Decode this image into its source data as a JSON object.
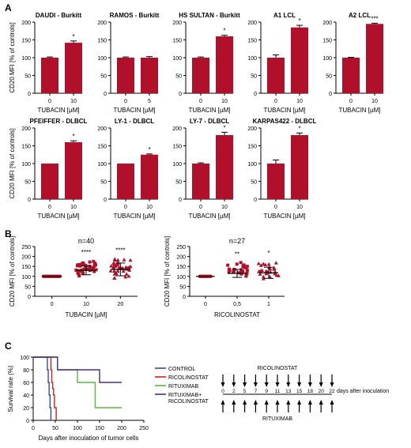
{
  "panel_labels": {
    "A": "A",
    "B": "B",
    "C": "C"
  },
  "chart_data": [
    {
      "type": "bar",
      "title": "DAUDI - Burkitt",
      "categories": [
        "0",
        "10"
      ],
      "values": [
        100,
        142
      ],
      "errors": [
        2,
        5
      ],
      "annotations": [
        "",
        "*"
      ],
      "xlabel": "TUBACIN [µM]",
      "ylabel": "CD20 MFI [% of controls]",
      "ylim": [
        0,
        200
      ],
      "yticks": [
        0,
        50,
        100,
        150,
        200
      ]
    },
    {
      "type": "bar",
      "title": "RAMOS - Burkitt",
      "categories": [
        "0",
        "5"
      ],
      "values": [
        100,
        100
      ],
      "errors": [
        2,
        3
      ],
      "annotations": [
        "",
        ""
      ],
      "xlabel": "TUBACIN [µM]",
      "ylim": [
        0,
        200
      ],
      "yticks": [
        0,
        50,
        100,
        150,
        200
      ]
    },
    {
      "type": "bar",
      "title": "HS SULTAN - Burkitt",
      "categories": [
        "0",
        "10"
      ],
      "values": [
        100,
        160
      ],
      "errors": [
        2,
        3
      ],
      "annotations": [
        "",
        "*"
      ],
      "xlabel": "TUBACIN [µM]",
      "ylim": [
        0,
        200
      ],
      "yticks": [
        0,
        50,
        100,
        150,
        200
      ]
    },
    {
      "type": "bar",
      "title": "A1 LCL",
      "categories": [
        "0",
        "10"
      ],
      "values": [
        100,
        185
      ],
      "errors": [
        8,
        6
      ],
      "annotations": [
        "",
        "*"
      ],
      "xlabel": "TUBACIN [µM]",
      "ylim": [
        0,
        200
      ],
      "yticks": [
        0,
        50,
        100,
        150,
        200
      ]
    },
    {
      "type": "bar",
      "title": "A2 LCL",
      "categories": [
        "0",
        "10"
      ],
      "values": [
        100,
        195
      ],
      "errors": [
        1,
        2
      ],
      "annotations": [
        "",
        "***"
      ],
      "xlabel": "TUBACIN [µM]",
      "ylim": [
        0,
        200
      ],
      "yticks": [
        0,
        50,
        100,
        150,
        200
      ]
    },
    {
      "type": "bar",
      "title": "PFEIFFER - DLBCL",
      "categories": [
        "0",
        "10"
      ],
      "values": [
        100,
        160
      ],
      "errors": [
        0,
        4
      ],
      "annotations": [
        "",
        "*"
      ],
      "xlabel": "TUBACIN [µM]",
      "ylabel": "CD20 MFI [% of controls]",
      "ylim": [
        0,
        200
      ],
      "yticks": [
        0,
        50,
        100,
        150,
        200
      ]
    },
    {
      "type": "bar",
      "title": "LY-1 - DLBCL",
      "categories": [
        "0",
        "10"
      ],
      "values": [
        100,
        125
      ],
      "errors": [
        0,
        2
      ],
      "annotations": [
        "",
        "*"
      ],
      "xlabel": "TUBACIN [µM]",
      "ylim": [
        0,
        200
      ],
      "yticks": [
        0,
        50,
        100,
        150,
        200
      ]
    },
    {
      "type": "bar",
      "title": "LY-7 - DLBCL",
      "categories": [
        "0",
        "10"
      ],
      "values": [
        100,
        180
      ],
      "errors": [
        2,
        8
      ],
      "annotations": [
        "",
        "*"
      ],
      "xlabel": "TUBACIN [µM]",
      "ylim": [
        0,
        200
      ],
      "yticks": [
        0,
        50,
        100,
        150,
        200
      ]
    },
    {
      "type": "bar",
      "title": "KARPAS422 - DLBCL",
      "categories": [
        "0",
        "10"
      ],
      "values": [
        100,
        180
      ],
      "errors": [
        10,
        6
      ],
      "annotations": [
        "",
        "*"
      ],
      "xlabel": "TUBACIN [µM]",
      "ylim": [
        0,
        200
      ],
      "yticks": [
        0,
        50,
        100,
        150,
        200
      ]
    },
    {
      "type": "scatter",
      "title": "n=40",
      "categories": [
        "0",
        "10",
        "20"
      ],
      "means": [
        100,
        130,
        135
      ],
      "sd": [
        2,
        22,
        32
      ],
      "spread": [
        [
          100,
          100
        ],
        [
          80,
          195
        ],
        [
          70,
          205
        ]
      ],
      "n_per_group": 40,
      "annotations": [
        "",
        "****",
        "****"
      ],
      "xlabel": "TUBACIN [µM]",
      "ylabel": "CD20 MFI [% of controls]",
      "ylim": [
        0,
        250
      ],
      "yticks": [
        0,
        50,
        100,
        150,
        200,
        250
      ]
    },
    {
      "type": "scatter",
      "title": "n=27",
      "categories": [
        "0",
        "0,5",
        "1"
      ],
      "means": [
        100,
        115,
        118
      ],
      "sd": [
        2,
        20,
        28
      ],
      "spread": [
        [
          100,
          100
        ],
        [
          80,
          185
        ],
        [
          75,
          190
        ]
      ],
      "n_per_group": 27,
      "annotations": [
        "",
        "**",
        "*"
      ],
      "xlabel": "RICOLINOSTAT",
      "ylabel": "CD20 MFI [% of controls]",
      "ylim": [
        0,
        250
      ],
      "yticks": [
        0,
        50,
        100,
        150,
        200,
        250
      ]
    },
    {
      "type": "line",
      "ylabel": "Survival rate (%)",
      "xlabel": "Days after inoculation of tumor cells",
      "xlim": [
        0,
        250
      ],
      "xticks": [
        0,
        50,
        100,
        150,
        200,
        250
      ],
      "ylim": [
        0,
        100
      ],
      "yticks": [
        0,
        20,
        40,
        60,
        80,
        100
      ],
      "series": [
        {
          "name": "CONTROL",
          "color": "#2b4fa8",
          "x": [
            0,
            32,
            34,
            36,
            38,
            40
          ],
          "y": [
            100,
            80,
            60,
            40,
            20,
            0
          ]
        },
        {
          "name": "RICOLINOSTAT",
          "color": "#d41f1f",
          "x": [
            0,
            40,
            42,
            44,
            46,
            48,
            52
          ],
          "y": [
            100,
            80,
            60,
            50,
            40,
            20,
            0
          ]
        },
        {
          "name": "RITUXIMAB",
          "color": "#5db83a",
          "x": [
            0,
            55,
            100,
            140,
            200
          ],
          "y": [
            100,
            80,
            60,
            20,
            20
          ]
        },
        {
          "name": "RITUXIMAB+ RICOLINOSTAT",
          "color": "#4b2c82",
          "x": [
            0,
            55,
            125,
            150,
            200
          ],
          "y": [
            100,
            80,
            80,
            60,
            60
          ]
        }
      ]
    }
  ],
  "schedule": {
    "drug_label": "RICOLINOSTAT",
    "antibody_label": "RITUXIMAB",
    "days": [
      "0",
      "2",
      "5",
      "7",
      "9",
      "11",
      "13",
      "15",
      "18",
      "20",
      "22"
    ],
    "caption": "days after inoculation"
  }
}
